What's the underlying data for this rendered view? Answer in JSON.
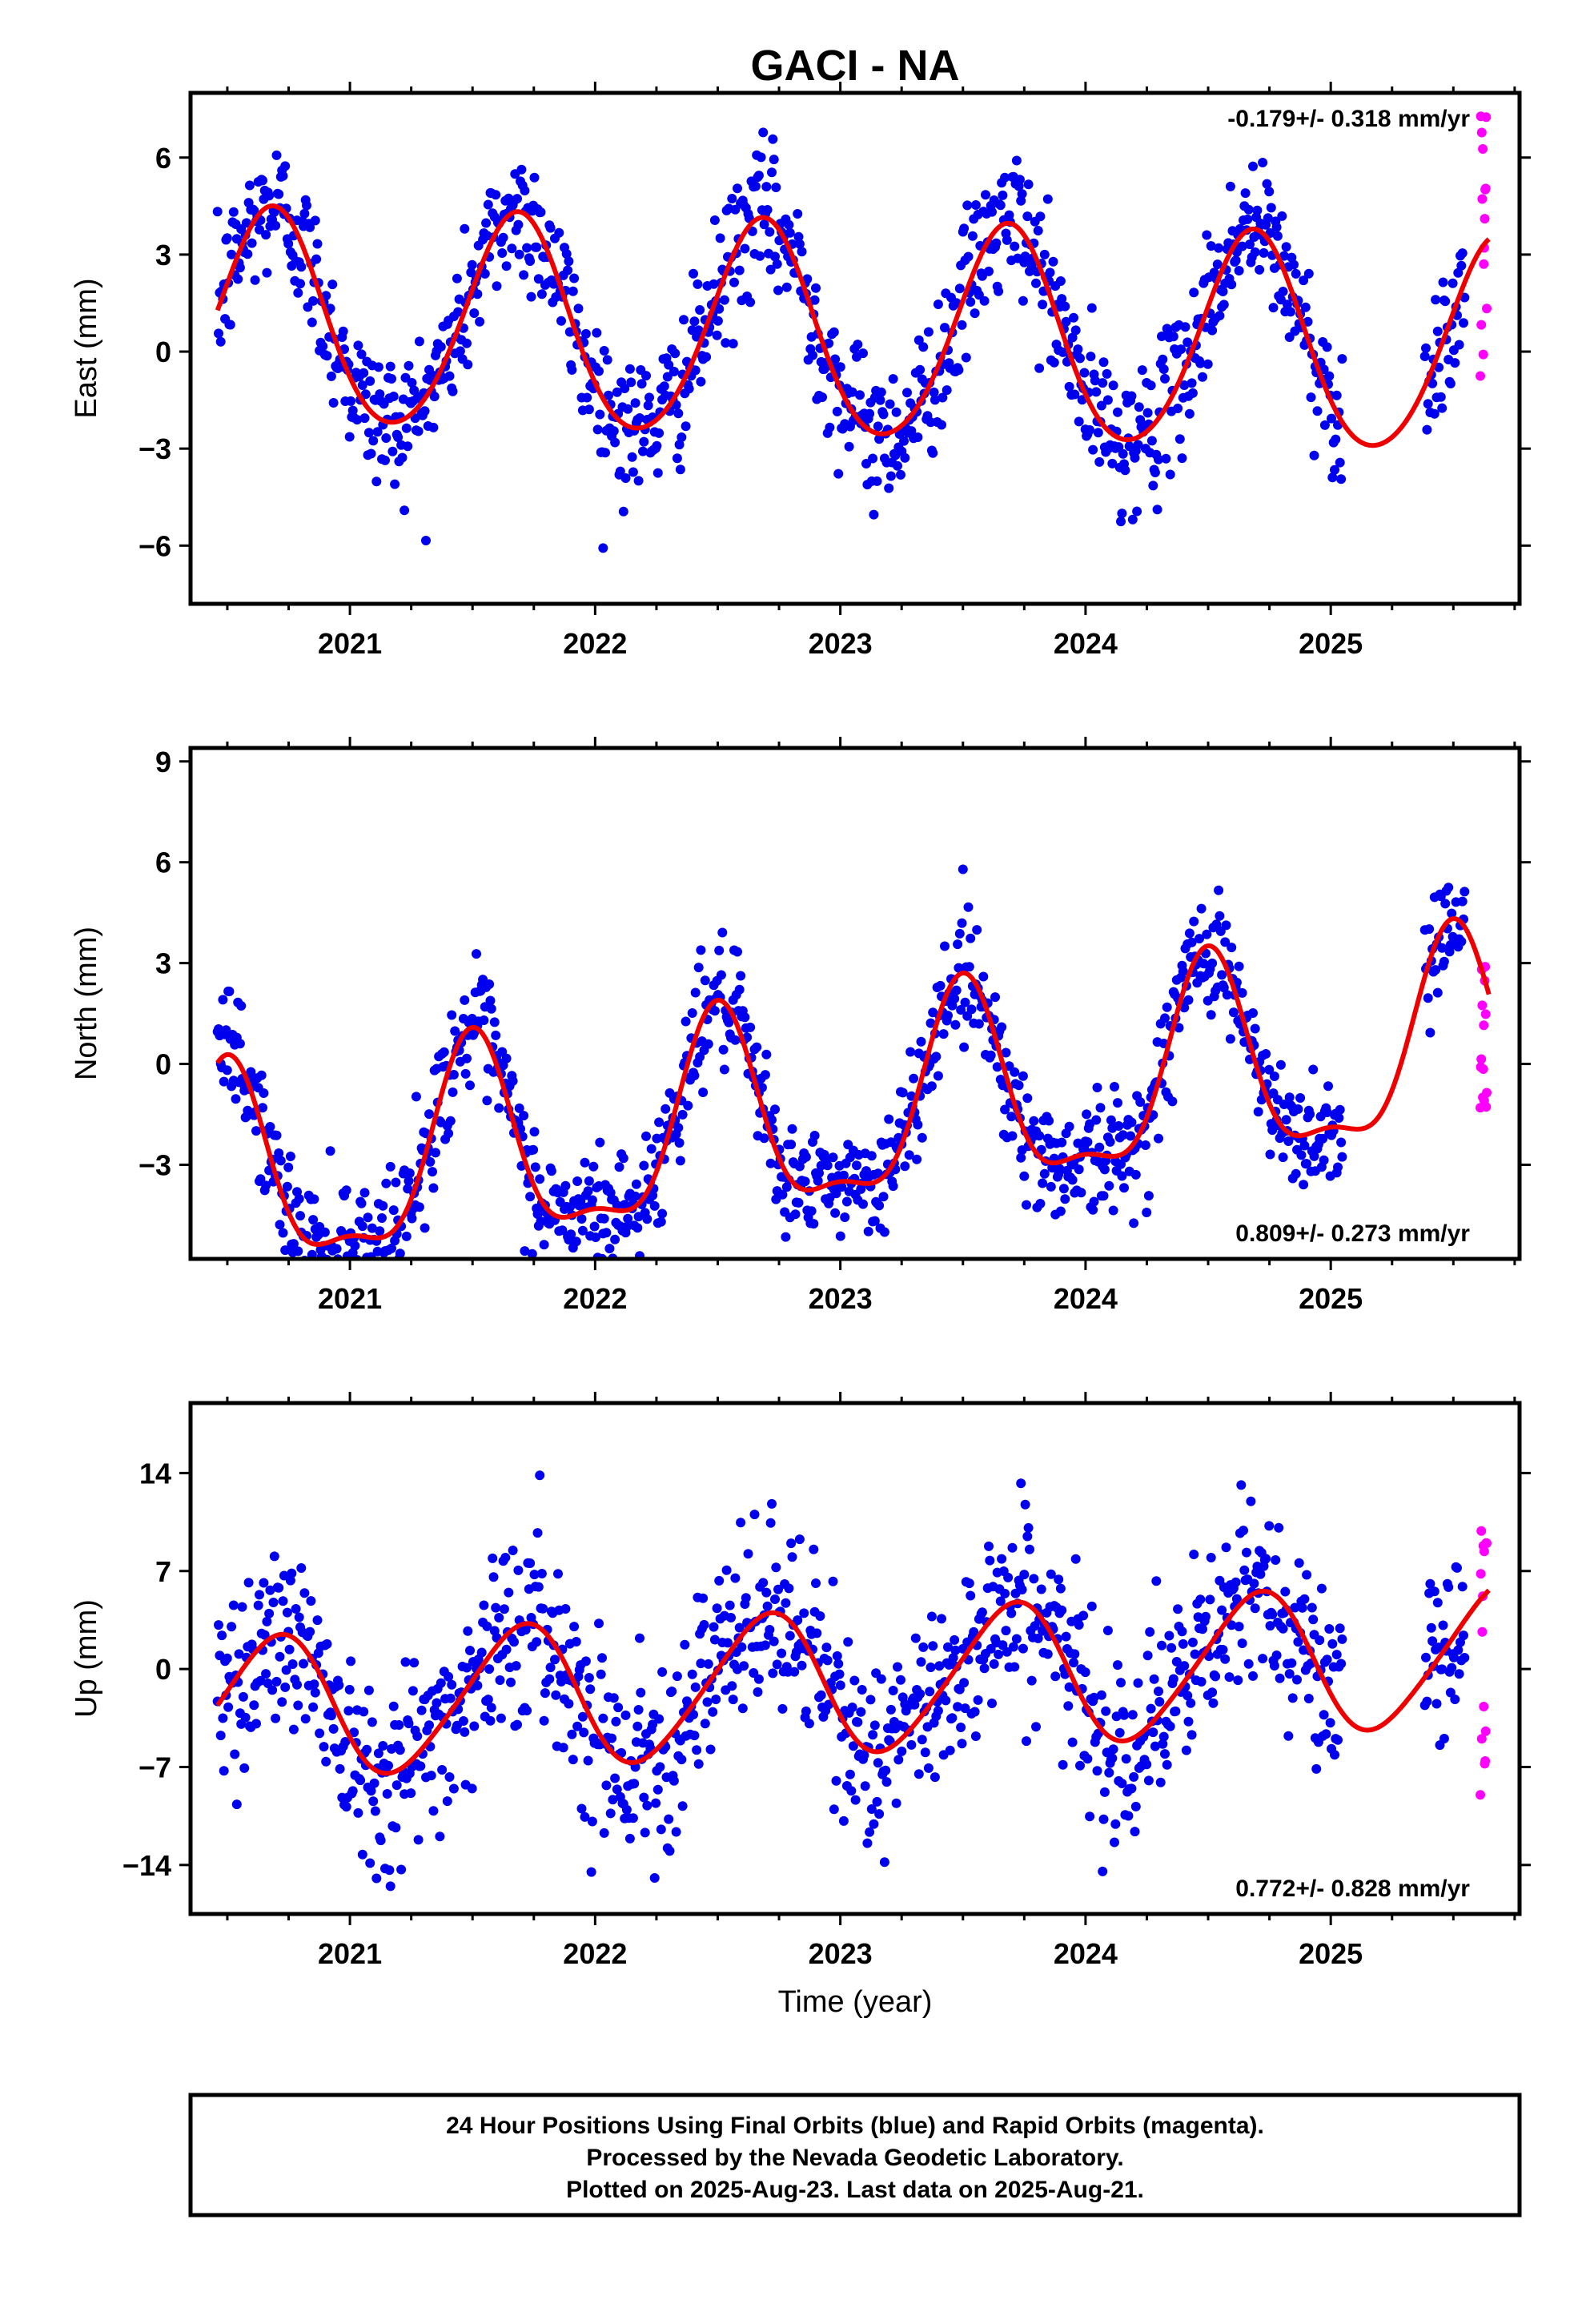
{
  "title": "GACI - NA",
  "colors": {
    "final": "#0000ee",
    "rapid": "#ff00ff",
    "model": "#ee0000",
    "frame": "#000000"
  },
  "xlabel": "Time (year)",
  "caption": [
    "24 Hour Positions Using Final Orbits (blue) and Rapid Orbits (magenta).",
    "Processed by the Nevada Geodetic Laboratory.",
    "Plotted on 2025-Aug-23. Last data on 2025-Aug-21."
  ],
  "chart_data": [
    {
      "type": "scatter",
      "component": "east",
      "ylabel": "East (mm)",
      "rate": "-0.179+/- 0.318 mm/yr",
      "xlim": [
        2020.35,
        2025.77
      ],
      "ylim": [
        -7.8,
        8.0
      ],
      "xticks": [
        2021,
        2022,
        2023,
        2024,
        2025
      ],
      "xtick_labels": [
        "2021",
        "2022",
        "2023",
        "2024",
        "2025"
      ],
      "yticks": [
        -6,
        -3,
        0,
        3,
        6
      ],
      "ytick_labels": [
        "−6",
        "−3",
        "0",
        "3",
        "6"
      ],
      "data_start": 2020.46,
      "data_end": 2025.64,
      "rapid_start": 2025.55,
      "model_end": 2025.65,
      "model": {
        "amplitude": 3.3,
        "phase_peak": 0.68,
        "offset": 0.5,
        "trend": -0.179,
        "harm2_amp": 0.3,
        "harm2_phase": 0.2
      },
      "scatter_sd": 1.1,
      "rapid_range": [
        -0.8,
        7.8
      ]
    },
    {
      "type": "scatter",
      "component": "north",
      "ylabel": "North (mm)",
      "rate": "0.809+/- 0.273 mm/yr",
      "xlim": [
        2020.35,
        2025.77
      ],
      "ylim": [
        -5.8,
        9.4
      ],
      "xticks": [
        2021,
        2022,
        2023,
        2024,
        2025
      ],
      "xtick_labels": [
        "2021",
        "2022",
        "2023",
        "2024",
        "2025"
      ],
      "yticks": [
        -3,
        0,
        3,
        6,
        9
      ],
      "ytick_labels": [
        "−3",
        "0",
        "3",
        "6",
        "9"
      ],
      "data_start": 2020.46,
      "data_end": 2025.64,
      "rapid_start": 2025.55,
      "model_end": 2025.65,
      "model": {
        "amplitude": 2.9,
        "phase_peak": 0.5,
        "offset": -1.6,
        "trend": 0.809,
        "harm2_amp": 1.0,
        "harm2_phase": 0.0
      },
      "scatter_sd": 0.9,
      "rapid_range": [
        -1.7,
        3.0
      ]
    },
    {
      "type": "scatter",
      "component": "up",
      "ylabel": "Up (mm)",
      "rate": "0.772+/- 0.828 mm/yr",
      "xlim": [
        2020.35,
        2025.77
      ],
      "ylim": [
        -17.5,
        19.0
      ],
      "xticks": [
        2021,
        2022,
        2023,
        2024,
        2025
      ],
      "xtick_labels": [
        "2021",
        "2022",
        "2023",
        "2024",
        "2025"
      ],
      "yticks": [
        -14,
        -7,
        0,
        7,
        14
      ],
      "ytick_labels": [
        "−14",
        "−7",
        "0",
        "7",
        "14"
      ],
      "data_start": 2020.46,
      "data_end": 2025.64,
      "rapid_start": 2025.55,
      "model_end": 2025.65,
      "model": {
        "amplitude": 5.0,
        "phase_peak": 0.69,
        "offset": -1.0,
        "trend": 0.772,
        "harm2_amp": 0.6,
        "harm2_phase": 0.3
      },
      "scatter_sd": 3.4,
      "rapid_range": [
        -9.8,
        11.0
      ]
    }
  ]
}
